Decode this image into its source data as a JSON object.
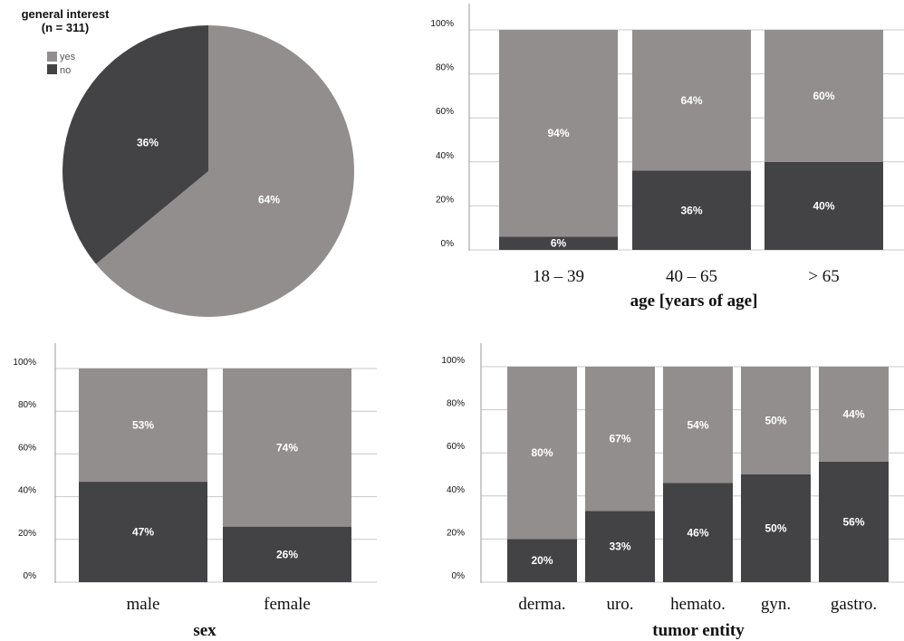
{
  "colors": {
    "yes": "#938e8e",
    "no": "#434345",
    "grid": "#c8c8c8",
    "axis": "#9a9a9a"
  },
  "chart_data": [
    {
      "type": "pie",
      "title": "general interest",
      "subtitle": "(n = 311)",
      "legend": [
        "yes",
        "no"
      ],
      "legend_position": "top-left",
      "slices": [
        {
          "label": "yes",
          "value": 64,
          "text": "64%"
        },
        {
          "label": "no",
          "value": 36,
          "text": "36%"
        }
      ]
    },
    {
      "type": "bar",
      "stacked": true,
      "xlabel": "age [years of age]",
      "ylabel": "",
      "ylim": [
        0,
        100
      ],
      "yticks": [
        "0%",
        "20%",
        "40%",
        "60%",
        "80%",
        "100%"
      ],
      "categories": [
        "18 – 39",
        "40 – 65",
        "> 65"
      ],
      "series": [
        {
          "key": "no",
          "values": [
            6,
            36,
            40
          ],
          "labels": [
            "6%",
            "36%",
            "40%"
          ]
        },
        {
          "key": "yes",
          "values": [
            94,
            64,
            60
          ],
          "labels": [
            "94%",
            "64%",
            "60%"
          ]
        }
      ]
    },
    {
      "type": "bar",
      "stacked": true,
      "xlabel": "sex",
      "ylabel": "",
      "ylim": [
        0,
        100
      ],
      "yticks": [
        "0%",
        "20%",
        "40%",
        "60%",
        "80%",
        "100%"
      ],
      "categories": [
        "male",
        "female"
      ],
      "series": [
        {
          "key": "no",
          "values": [
            47,
            26
          ],
          "labels": [
            "47%",
            "26%"
          ]
        },
        {
          "key": "yes",
          "values": [
            53,
            74
          ],
          "labels": [
            "53%",
            "74%"
          ]
        }
      ]
    },
    {
      "type": "bar",
      "stacked": true,
      "xlabel": "tumor entity",
      "ylabel": "",
      "ylim": [
        0,
        100
      ],
      "yticks": [
        "0%",
        "20%",
        "40%",
        "60%",
        "80%",
        "100%"
      ],
      "categories": [
        "derma.",
        "uro.",
        "hemato.",
        "gyn.",
        "gastro."
      ],
      "series": [
        {
          "key": "no",
          "values": [
            20,
            33,
            46,
            50,
            56
          ],
          "labels": [
            "20%",
            "33%",
            "46%",
            "50%",
            "56%"
          ]
        },
        {
          "key": "yes",
          "values": [
            80,
            67,
            54,
            50,
            44
          ],
          "labels": [
            "80%",
            "67%",
            "54%",
            "50%",
            "44%"
          ]
        }
      ]
    }
  ]
}
